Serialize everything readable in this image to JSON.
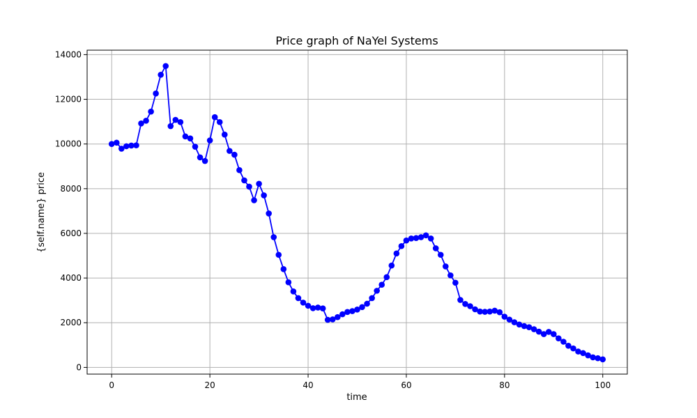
{
  "chart_data": {
    "type": "line",
    "title": "Price graph of NaYel Systems",
    "xlabel": "time",
    "ylabel": "{self.name} price",
    "xlim": [
      -5,
      105
    ],
    "ylim": [
      -300,
      14200
    ],
    "x_ticks": [
      0,
      20,
      40,
      60,
      80,
      100
    ],
    "y_ticks": [
      0,
      2000,
      4000,
      6000,
      8000,
      10000,
      12000,
      14000
    ],
    "grid": true,
    "legend": "none",
    "series": [
      {
        "color": "#0000ff",
        "marker": "circle",
        "x": [
          0,
          1,
          2,
          3,
          4,
          5,
          6,
          7,
          8,
          9,
          10,
          11,
          12,
          13,
          14,
          15,
          16,
          17,
          18,
          19,
          20,
          21,
          22,
          23,
          24,
          25,
          26,
          27,
          28,
          29,
          30,
          31,
          32,
          33,
          34,
          35,
          36,
          37,
          38,
          39,
          40,
          41,
          42,
          43,
          44,
          45,
          46,
          47,
          48,
          49,
          50,
          51,
          52,
          53,
          54,
          55,
          56,
          57,
          58,
          59,
          60,
          61,
          62,
          63,
          64,
          65,
          66,
          67,
          68,
          69,
          70,
          71,
          72,
          73,
          74,
          75,
          76,
          77,
          78,
          79,
          80,
          81,
          82,
          83,
          84,
          85,
          86,
          87,
          88,
          89,
          90,
          91,
          92,
          93,
          94,
          95,
          96,
          97,
          98,
          99,
          100
        ],
        "values": [
          10000,
          10060,
          9790,
          9900,
          9930,
          9940,
          10920,
          11040,
          11450,
          12260,
          13100,
          13490,
          10800,
          11080,
          10980,
          10340,
          10250,
          9880,
          9400,
          9240,
          10160,
          11200,
          10980,
          10420,
          9690,
          9520,
          8830,
          8370,
          8090,
          7480,
          8220,
          7700,
          6890,
          5830,
          5040,
          4400,
          3810,
          3400,
          3100,
          2900,
          2760,
          2650,
          2680,
          2640,
          2130,
          2150,
          2250,
          2380,
          2480,
          2520,
          2590,
          2700,
          2850,
          3100,
          3430,
          3700,
          4040,
          4560,
          5100,
          5430,
          5680,
          5770,
          5790,
          5830,
          5910,
          5770,
          5330,
          5040,
          4520,
          4120,
          3790,
          3020,
          2840,
          2740,
          2600,
          2500,
          2490,
          2500,
          2540,
          2470,
          2270,
          2140,
          2020,
          1920,
          1850,
          1800,
          1710,
          1600,
          1490,
          1590,
          1490,
          1300,
          1150,
          970,
          850,
          710,
          640,
          540,
          450,
          410,
          360
        ]
      }
    ]
  }
}
